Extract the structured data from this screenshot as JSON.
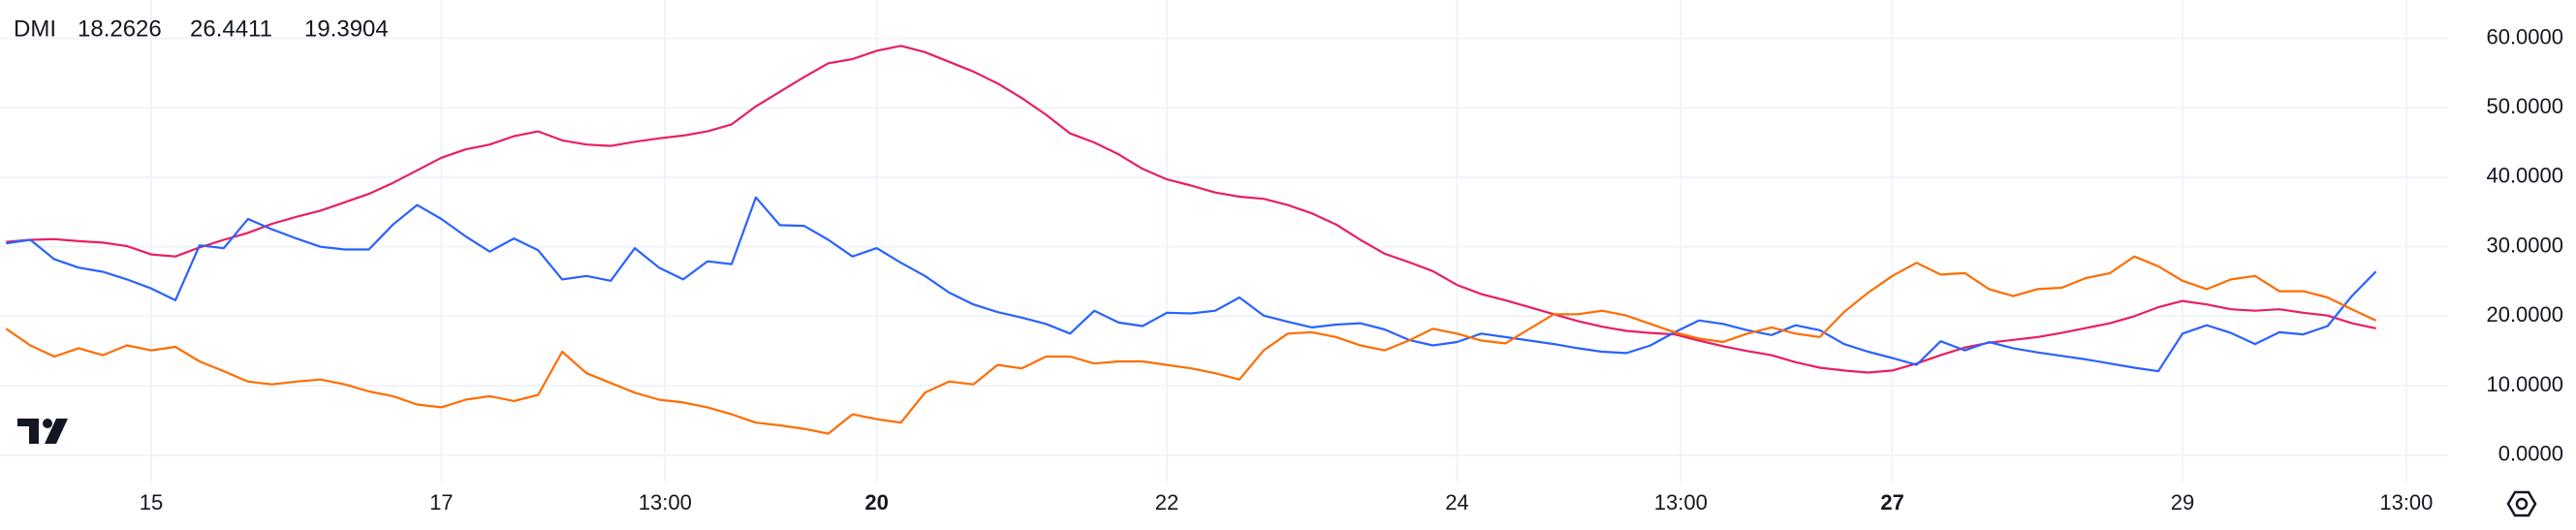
{
  "chart_data": {
    "type": "line",
    "title": "DMI",
    "x": [
      14,
      14.167,
      14.333,
      14.5,
      14.667,
      14.833,
      15,
      15.167,
      15.333,
      15.5,
      15.667,
      15.833,
      16,
      16.167,
      16.333,
      16.5,
      16.667,
      16.833,
      17,
      17.167,
      17.333,
      17.5,
      17.667,
      17.833,
      18,
      18.167,
      18.333,
      18.5,
      18.667,
      18.833,
      19,
      19.167,
      19.333,
      19.5,
      19.667,
      19.833,
      20,
      20.167,
      20.333,
      20.5,
      20.667,
      20.833,
      21,
      21.167,
      21.333,
      21.5,
      21.667,
      21.833,
      22,
      22.167,
      22.333,
      22.5,
      22.667,
      22.833,
      23,
      23.167,
      23.333,
      23.5,
      23.667,
      23.833,
      24,
      24.167,
      24.333,
      24.5,
      24.667,
      24.833,
      25,
      25.167,
      25.333,
      25.5,
      25.667,
      25.833,
      26,
      26.167,
      26.333,
      26.5,
      26.667,
      26.833,
      27,
      27.167,
      27.333,
      27.5,
      27.667,
      27.833,
      28,
      28.167,
      28.333,
      28.5,
      28.667,
      28.833,
      29,
      29.167,
      29.333,
      29.5,
      29.667,
      29.833,
      30,
      30.167,
      30.333
    ],
    "series": [
      {
        "color": "#e91e63",
        "values": [
          30.7,
          31.0,
          31.1,
          30.8,
          30.6,
          30.1,
          28.9,
          28.6,
          29.9,
          31.0,
          32.0,
          33.3,
          34.3,
          35.2,
          36.4,
          37.6,
          39.2,
          41.0,
          42.8,
          44.0,
          44.7,
          45.9,
          46.6,
          45.3,
          44.7,
          44.5,
          45.1,
          45.6,
          46.0,
          46.6,
          47.6,
          50.2,
          52.3,
          54.4,
          56.4,
          57.0,
          58.2,
          58.9,
          58.0,
          56.6,
          55.2,
          53.5,
          51.4,
          49.0,
          46.3,
          45.0,
          43.3,
          41.2,
          39.7,
          38.8,
          37.8,
          37.2,
          36.9,
          36.0,
          34.8,
          33.2,
          31.0,
          29.0,
          27.8,
          26.5,
          24.5,
          23.2,
          22.3,
          21.3,
          20.3,
          19.3,
          18.5,
          17.9,
          17.6,
          17.4,
          16.5,
          15.7,
          15.0,
          14.4,
          13.4,
          12.6,
          12.2,
          11.9,
          12.2,
          13.2,
          14.4,
          15.5,
          16.2,
          16.6,
          17.0,
          17.6,
          18.3,
          19.0,
          20.0,
          21.3,
          22.2,
          21.7,
          21.0,
          20.8,
          21.0,
          20.5,
          20.1,
          19.0,
          18.2626
        ]
      },
      {
        "color": "#2962ff",
        "values": [
          30.5,
          31.0,
          28.2,
          27.0,
          26.4,
          25.3,
          24.0,
          22.3,
          30.2,
          29.8,
          34.0,
          32.5,
          31.2,
          30.0,
          29.6,
          29.6,
          33.2,
          36.0,
          34.0,
          31.5,
          29.3,
          31.2,
          29.5,
          25.3,
          25.8,
          25.1,
          29.8,
          27.0,
          25.3,
          27.9,
          27.5,
          37.1,
          33.1,
          33.0,
          31.0,
          28.6,
          29.8,
          27.7,
          25.8,
          23.4,
          21.7,
          20.6,
          19.8,
          18.9,
          17.5,
          20.8,
          19.1,
          18.6,
          20.5,
          20.4,
          20.8,
          22.7,
          20.1,
          19.2,
          18.4,
          18.8,
          19.0,
          18.1,
          16.6,
          15.8,
          16.3,
          17.5,
          17.0,
          16.5,
          16.0,
          15.4,
          14.9,
          14.7,
          15.8,
          17.7,
          19.4,
          18.9,
          18.0,
          17.3,
          18.7,
          18.0,
          16.0,
          14.9,
          14.0,
          13.0,
          16.4,
          15.1,
          16.3,
          15.4,
          14.8,
          14.3,
          13.8,
          13.2,
          12.6,
          12.1,
          17.5,
          18.7,
          17.6,
          16.0,
          17.7,
          17.4,
          18.6,
          22.9,
          26.4411
        ]
      },
      {
        "color": "#ff6d00",
        "values": [
          18.2,
          15.8,
          14.2,
          15.4,
          14.4,
          15.8,
          15.1,
          15.6,
          13.5,
          12.1,
          10.6,
          10.2,
          10.6,
          10.9,
          10.2,
          9.2,
          8.5,
          7.3,
          6.9,
          8.0,
          8.5,
          7.8,
          8.7,
          14.9,
          11.8,
          10.4,
          9.0,
          8.0,
          7.6,
          6.9,
          5.9,
          4.7,
          4.3,
          3.8,
          3.1,
          5.9,
          5.2,
          4.7,
          9.0,
          10.6,
          10.2,
          13.0,
          12.5,
          14.2,
          14.2,
          13.2,
          13.5,
          13.5,
          13.0,
          12.5,
          11.8,
          10.9,
          15.1,
          17.5,
          17.7,
          17.0,
          15.8,
          15.1,
          16.5,
          18.2,
          17.5,
          16.5,
          16.1,
          18.2,
          20.3,
          20.3,
          20.8,
          20.1,
          18.9,
          17.7,
          16.8,
          16.3,
          17.5,
          18.4,
          17.5,
          17.0,
          20.6,
          23.4,
          25.8,
          27.7,
          26.0,
          26.2,
          23.9,
          22.9,
          23.9,
          24.1,
          25.5,
          26.2,
          28.6,
          27.2,
          25.1,
          23.9,
          25.3,
          25.8,
          23.6,
          23.6,
          22.7,
          21.0,
          19.3904
        ]
      }
    ],
    "xlim": [
      13.958,
      30.83
    ],
    "ylim": [
      -3.78,
      65.5
    ],
    "xticks": [
      {
        "value": 15,
        "label": "15"
      },
      {
        "value": 17,
        "label": "17"
      },
      {
        "value": 18.542,
        "label": "13:00"
      },
      {
        "value": 20,
        "label": "20",
        "bold": true
      },
      {
        "value": 22,
        "label": "22"
      },
      {
        "value": 24,
        "label": "24"
      },
      {
        "value": 25.542,
        "label": "13:00"
      },
      {
        "value": 27,
        "label": "27",
        "bold": true
      },
      {
        "value": 29,
        "label": "29"
      },
      {
        "value": 30.542,
        "label": "13:00"
      }
    ],
    "yticks": [
      {
        "value": 0,
        "label": "0.0000"
      },
      {
        "value": 10,
        "label": "10.0000"
      },
      {
        "value": 20,
        "label": "20.0000"
      },
      {
        "value": 30,
        "label": "30.0000"
      },
      {
        "value": 40,
        "label": "40.0000"
      },
      {
        "value": 50,
        "label": "50.0000"
      },
      {
        "value": 60,
        "label": "60.0000"
      }
    ],
    "grid": true
  }
}
